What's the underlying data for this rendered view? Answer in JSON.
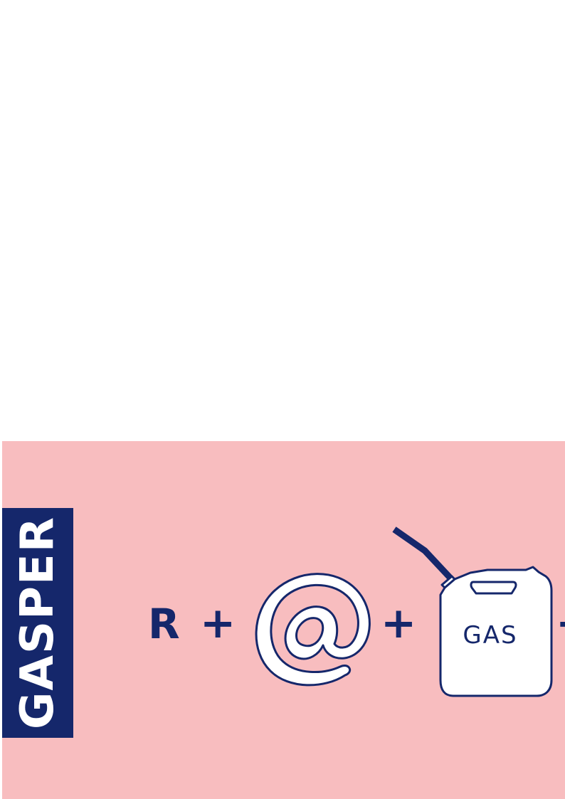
{
  "side_tab": {
    "label": "GASPER"
  },
  "rebus": {
    "letter": "R",
    "plus_1": "+",
    "plus_2": "+",
    "plus_3": "+",
    "can_label": "GAS"
  },
  "icons": {
    "at": "at-sign-icon",
    "can": "jerry-can-icon"
  },
  "colors": {
    "panel_background": "#f8bdbf",
    "navy": "#15276b",
    "white": "#ffffff"
  }
}
